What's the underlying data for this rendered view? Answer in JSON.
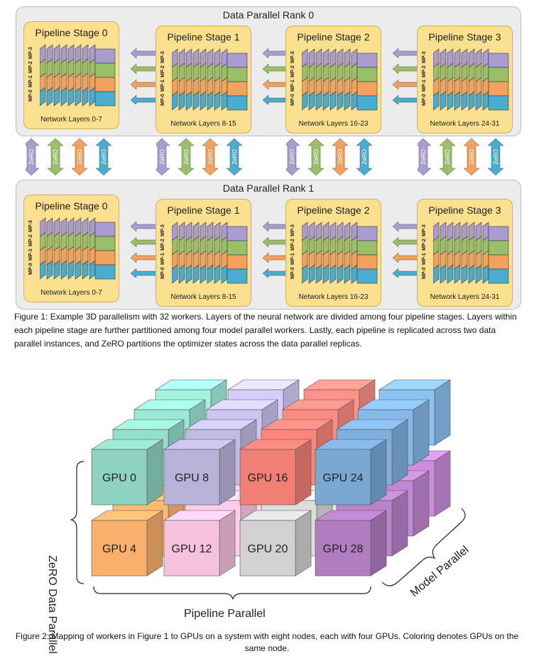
{
  "figure1": {
    "ranks": [
      {
        "title": "Data Parallel Rank 0"
      },
      {
        "title": "Data Parallel Rank 1"
      }
    ],
    "stages": [
      {
        "title": "Pipeline Stage 0",
        "layers": "Network Layers 0-7"
      },
      {
        "title": "Pipeline Stage 1",
        "layers": "Network Layers 8-15"
      },
      {
        "title": "Pipeline Stage 2",
        "layers": "Network Layers 16-23"
      },
      {
        "title": "Pipeline Stage 3",
        "layers": "Network Layers 24-31"
      }
    ],
    "mp_labels": [
      "MP-0",
      "MP-1",
      "MP-2",
      "MP-3"
    ],
    "zero_label": "ZeRO",
    "colors": {
      "mp0": "#a99cd0",
      "mp1": "#99c069",
      "mp2": "#f2a25e",
      "mp3": "#4aaccf",
      "stage_bg": "#fbe08f",
      "rank_bg": "#ececec"
    },
    "caption": "Figure 1: Example 3D parallelism with 32 workers. Layers of the neural network are divided among four pipeline stages. Layers within each pipeline stage are further partitioned among four model parallel workers. Lastly, each pipeline is replicated across two data parallel instances, and ZeRO partitions the optimizer states across the data parallel replicas."
  },
  "figure2": {
    "gpus_front_top": [
      "GPU 0",
      "GPU 8",
      "GPU 16",
      "GPU 24"
    ],
    "gpus_front_bottom": [
      "GPU 4",
      "GPU 12",
      "GPU 20",
      "GPU 28"
    ],
    "axis_left": "ZeRO Data Parallel",
    "axis_bottom": "Pipeline Parallel",
    "axis_right": "Model Parallel",
    "colors": {
      "top": [
        "#8ed3c2",
        "#b9b3d9",
        "#f17f76",
        "#7aa8d3"
      ],
      "bottom": [
        "#f8b06c",
        "#f6c2de",
        "#d2d2d2",
        "#b17cc0"
      ]
    },
    "caption": "Figure 2: Mapping of workers in Figure 1 to GPUs on a system with eight nodes, each with four GPUs. Coloring denotes GPUs on the same node."
  }
}
